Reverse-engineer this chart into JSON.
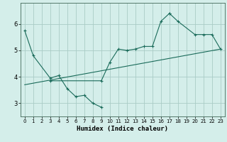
{
  "xlabel": "Humidex (Indice chaleur)",
  "xlim": [
    -0.5,
    23.5
  ],
  "ylim": [
    2.5,
    6.8
  ],
  "yticks": [
    3,
    4,
    5,
    6
  ],
  "xticks": [
    0,
    1,
    2,
    3,
    4,
    5,
    6,
    7,
    8,
    9,
    10,
    11,
    12,
    13,
    14,
    15,
    16,
    17,
    18,
    19,
    20,
    21,
    22,
    23
  ],
  "bg_color": "#d4eeea",
  "grid_color": "#aaccc6",
  "line_color": "#1a6b5a",
  "line1": {
    "x": [
      0,
      1,
      3,
      4,
      5,
      6,
      7,
      8,
      9
    ],
    "y": [
      5.75,
      4.8,
      3.95,
      4.05,
      3.55,
      3.25,
      3.3,
      3.0,
      2.85
    ]
  },
  "line2": {
    "x": [
      3,
      9,
      10,
      11,
      12,
      13,
      14,
      15,
      16,
      17
    ],
    "y": [
      3.85,
      3.85,
      4.55,
      5.05,
      5.0,
      5.05,
      5.15,
      5.15,
      6.1,
      6.4
    ]
  },
  "line3": {
    "x": [
      17,
      18,
      20,
      21,
      22,
      23
    ],
    "y": [
      6.4,
      6.1,
      5.6,
      5.6,
      5.6,
      5.05
    ]
  },
  "line4": {
    "x": [
      0,
      23
    ],
    "y": [
      3.7,
      5.05
    ]
  }
}
